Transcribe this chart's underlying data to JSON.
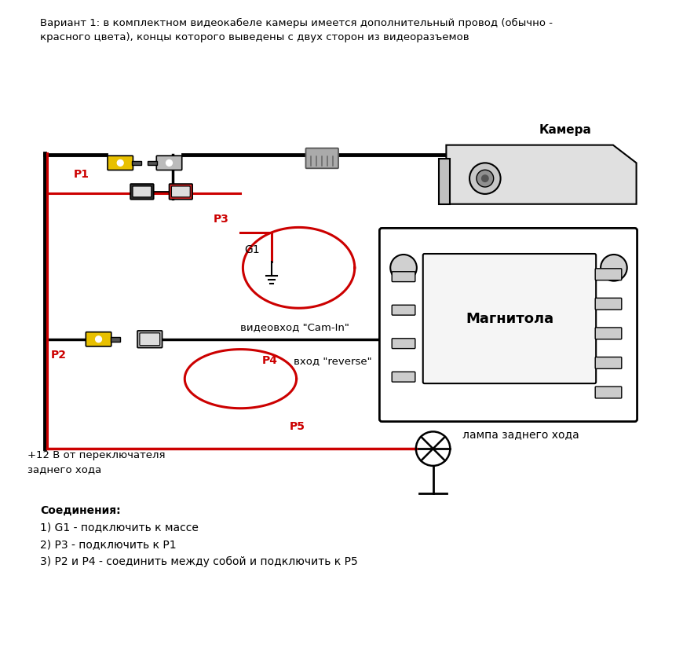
{
  "title_text": "Вариант 1: в комплектном видеокабеле камеры имеется дополнительный провод (обычно -\nкрасного цвета), концы которого выведены с двух сторон из видеоразъемов",
  "bg_color": "#ffffff",
  "label_camera": "Камера",
  "label_magnit": "Магнитола",
  "label_p1": "P1",
  "label_p2": "P2",
  "label_p3": "P3",
  "label_p4": "P4",
  "label_p5": "P5",
  "label_g1": "G1",
  "label_video_in": "видеовход \"Cam-In\"",
  "label_reverse": "вход \"reverse\"",
  "label_lamp": "лампа заднего хода",
  "label_plus12": "+12 В от переключателя\nзаднего хода",
  "label_connections": "Соединения:",
  "label_conn1": "1) G1 - подключить к массе",
  "label_conn2": "2) Р3 - подключить к Р1",
  "label_conn3": "3) Р2 и Р4 - соединить между собой и подключить к Р5",
  "black": "#000000",
  "red": "#cc0000",
  "yellow": "#e8c000",
  "gray": "#888888",
  "lightgray": "#cccccc",
  "darkgray": "#555555",
  "white": "#ffffff"
}
